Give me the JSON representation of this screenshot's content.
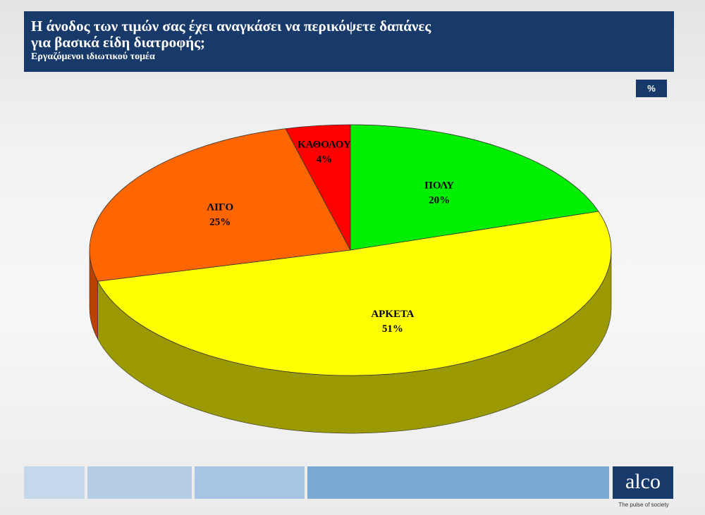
{
  "header": {
    "title_line1": "Η άνοδος των τιμών σας  έχει αναγκάσει να περικόψετε δαπάνες",
    "title_line2": "για  βασικά είδη διατροφής;",
    "subtitle": "Εργαζόμενοι ιδιωτικού τομέα"
  },
  "unit_badge": "%",
  "chart_data": {
    "type": "pie",
    "title": "Η άνοδος των τιμών σας  έχει αναγκάσει να περικόψετε δαπάνες για  βασικά είδη διατροφής;",
    "subtitle": "Εργαζόμενοι ιδιωτικού τομέα",
    "unit": "%",
    "slices": [
      {
        "label": "ΠΟΛΥ",
        "value": 20,
        "value_label": "20%",
        "color": "#00ee00",
        "side_color": "#007a00"
      },
      {
        "label": "ΑΡΚΕΤΑ",
        "value": 51,
        "value_label": "51%",
        "color": "#ffff00",
        "side_color": "#9a9a00"
      },
      {
        "label": "ΛΙΓΟ",
        "value": 25,
        "value_label": "25%",
        "color": "#ff6600",
        "side_color": "#b84300"
      },
      {
        "label": "ΚΑΘΟΛΟΥ",
        "value": 4,
        "value_label": "4%",
        "color": "#ff0000",
        "side_color": "#a00000"
      }
    ]
  },
  "footer": {
    "logo": "alco",
    "tagline": "The pulse of society",
    "bar_colors": [
      "#c4d8ec",
      "#b6cde6",
      "#a6c4e4",
      "#7aaad4"
    ]
  }
}
